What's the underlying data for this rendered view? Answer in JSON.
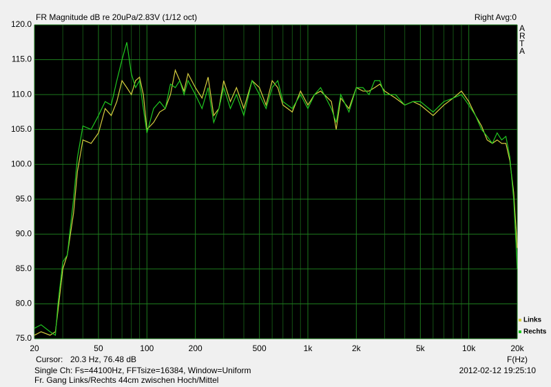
{
  "chart_data": {
    "type": "line",
    "title": "FR Magnitude dB re 20uPa/2.83V (1/12 oct)",
    "status": "Right  Avg:0",
    "watermark": "ARTA",
    "xlabel": "F(Hz)",
    "cursor_label": "Cursor:",
    "cursor_value": "20.3 Hz, 76.48 dB",
    "info_lines": [
      "Single Ch: Fs=44100Hz, FFTsize=16384, Window=Uniform",
      "Fr. Gang Links/Rechts 44cm zwischen Hoch/Mittel"
    ],
    "timestamp": "2012-02-12  19:25:10",
    "xscale": "log",
    "xlim": [
      20,
      20000
    ],
    "xticks": [
      20,
      50,
      100,
      200,
      500,
      {
        "value": 1000,
        "label": "1k"
      },
      {
        "value": 2000,
        "label": "2k"
      },
      {
        "value": 5000,
        "label": "5k"
      },
      {
        "value": 10000,
        "label": "10k"
      },
      {
        "value": 20000,
        "label": "20k"
      }
    ],
    "minor_xticks": [
      30,
      40,
      60,
      70,
      80,
      90,
      300,
      400,
      600,
      700,
      800,
      900,
      3000,
      4000,
      6000,
      7000,
      8000,
      9000
    ],
    "ylim": [
      75,
      120
    ],
    "yticks": [
      {
        "value": 75,
        "label": "75.0"
      },
      {
        "value": 80,
        "label": "80.0"
      },
      {
        "value": 85,
        "label": "85.0"
      },
      {
        "value": 90,
        "label": "90.0"
      },
      {
        "value": 95,
        "label": "95.0"
      },
      {
        "value": 100,
        "label": "100.0"
      },
      {
        "value": 105,
        "label": "105.0"
      },
      {
        "value": 110,
        "label": "110.0"
      },
      {
        "value": 115,
        "label": "115.0"
      },
      {
        "value": 120,
        "label": "120.0"
      }
    ],
    "grid": true,
    "x": [
      20,
      22,
      25,
      27,
      28,
      30,
      32,
      35,
      37,
      40,
      45,
      50,
      55,
      60,
      65,
      70,
      75,
      80,
      85,
      90,
      95,
      100,
      110,
      120,
      130,
      140,
      150,
      160,
      170,
      180,
      200,
      220,
      240,
      260,
      280,
      300,
      330,
      360,
      400,
      450,
      500,
      550,
      600,
      650,
      700,
      800,
      900,
      1000,
      1100,
      1200,
      1400,
      1500,
      1600,
      1800,
      2000,
      2200,
      2400,
      2600,
      2800,
      3000,
      3500,
      4000,
      4500,
      5000,
      6000,
      7000,
      8000,
      9000,
      10000,
      11000,
      12000,
      13000,
      14000,
      15000,
      16000,
      17000,
      18000,
      19000,
      20000
    ],
    "series": [
      {
        "name": "Links",
        "color": "#d8d040",
        "values": [
          75.5,
          76,
          75.5,
          76,
          79,
          85,
          87,
          93,
          99,
          103.5,
          103,
          104.5,
          108,
          107,
          109,
          112,
          111,
          110,
          112,
          112.5,
          110,
          105,
          106,
          107.5,
          108,
          110,
          113.5,
          112,
          110.5,
          113,
          111,
          109.5,
          112.5,
          107,
          108,
          112,
          109,
          111,
          108,
          112,
          111,
          108.5,
          112,
          111,
          108.5,
          107.5,
          110.5,
          108.5,
          110,
          110.5,
          109,
          105,
          109.5,
          108,
          111,
          110.5,
          110.5,
          111,
          111.5,
          110.5,
          109.5,
          108.5,
          109,
          108.5,
          107,
          108.5,
          109.5,
          110.5,
          109,
          107,
          105.5,
          103.5,
          103,
          103.5,
          103,
          103,
          100.5,
          96,
          88
        ]
      },
      {
        "name": "Rechts",
        "color": "#20c820",
        "values": [
          76.5,
          77,
          76,
          75.5,
          80,
          86,
          87,
          95,
          101,
          105.5,
          105,
          107,
          109,
          108.5,
          112,
          115,
          117.5,
          113,
          111,
          112,
          108,
          104.5,
          108,
          109,
          108,
          111.5,
          111,
          112,
          110,
          112,
          110,
          108,
          111,
          106,
          108,
          111,
          108,
          110,
          107,
          112,
          110,
          108,
          111,
          112,
          109,
          108,
          110,
          108,
          110,
          111,
          108,
          106,
          110,
          107.5,
          111,
          111,
          110,
          112,
          112,
          110,
          110,
          108.5,
          109,
          109,
          107.5,
          109,
          109.5,
          110,
          108.5,
          107,
          105,
          104,
          103,
          104.5,
          103.5,
          104,
          101,
          95,
          85
        ]
      }
    ]
  }
}
